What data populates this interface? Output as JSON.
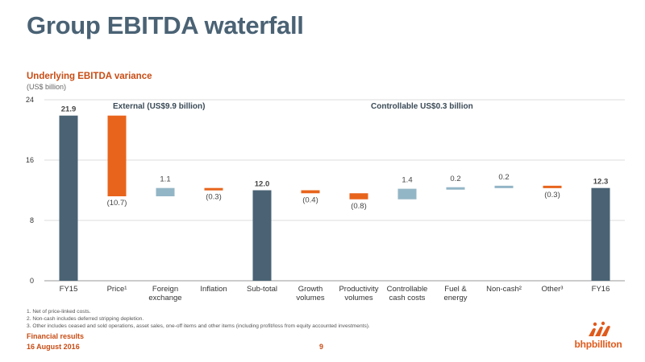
{
  "header": {
    "title": "Group EBITDA waterfall",
    "subtitle": "Underlying EBITDA variance",
    "units": "(US$ billion)"
  },
  "colors": {
    "total": "#4a6274",
    "external_negative": "#e8641c",
    "controllable": "#93b6c6",
    "accent_text": "#c84c14",
    "brand": "#e05a1c"
  },
  "chart_data": {
    "type": "bar",
    "subtype": "waterfall",
    "ylim": [
      0,
      24
    ],
    "yticks": [
      0,
      8,
      16,
      24
    ],
    "grid": true,
    "categories": [
      "FY15",
      "Price¹",
      "Foreign exchange",
      "Inflation",
      "Sub-total",
      "Growth volumes",
      "Productivity volumes",
      "Controllable cash costs",
      "Fuel & energy",
      "Non-cash²",
      "Other³",
      "FY16"
    ],
    "category_lines": [
      [
        "FY15"
      ],
      [
        "Price¹"
      ],
      [
        "Foreign",
        "exchange"
      ],
      [
        "Inflation"
      ],
      [
        "Sub-total"
      ],
      [
        "Growth",
        "volumes"
      ],
      [
        "Productivity",
        "volumes"
      ],
      [
        "Controllable",
        "cash costs"
      ],
      [
        "Fuel &",
        "energy"
      ],
      [
        "Non-cash²"
      ],
      [
        "Other³"
      ],
      [
        "FY16"
      ]
    ],
    "bars": [
      {
        "kind": "total",
        "start": 0,
        "end": 21.9,
        "label": "21.9"
      },
      {
        "kind": "external",
        "start": 21.9,
        "end": 11.2,
        "label": "(10.7)"
      },
      {
        "kind": "controllable",
        "start": 11.2,
        "end": 12.3,
        "label": "1.1"
      },
      {
        "kind": "external",
        "start": 12.3,
        "end": 12.0,
        "label": "(0.3)"
      },
      {
        "kind": "total",
        "start": 0,
        "end": 12.0,
        "label": "12.0"
      },
      {
        "kind": "external",
        "start": 12.0,
        "end": 11.6,
        "label": "(0.4)"
      },
      {
        "kind": "external",
        "start": 11.6,
        "end": 10.8,
        "label": "(0.8)"
      },
      {
        "kind": "controllable",
        "start": 10.8,
        "end": 12.2,
        "label": "1.4"
      },
      {
        "kind": "controllable",
        "start": 12.2,
        "end": 12.4,
        "label": "0.2"
      },
      {
        "kind": "controllable",
        "start": 12.4,
        "end": 12.6,
        "label": "0.2"
      },
      {
        "kind": "external",
        "start": 12.6,
        "end": 12.3,
        "label": "(0.3)"
      },
      {
        "kind": "total",
        "start": 0,
        "end": 12.3,
        "label": "12.3"
      }
    ],
    "annotations": {
      "external": "External (US$9.9 billion)",
      "controllable": "Controllable US$0.3 billion"
    }
  },
  "footnotes": [
    "1.  Net of price-linked costs.",
    "2.  Non-cash includes deferred stripping depletion.",
    "3.  Other includes ceased and sold operations, asset sales, one-off items and other items (including profit/loss from equity accounted investments)."
  ],
  "footer": {
    "label": "Financial results",
    "date": "16 August 2016",
    "page": "9",
    "logo": "bhpbilliton"
  }
}
